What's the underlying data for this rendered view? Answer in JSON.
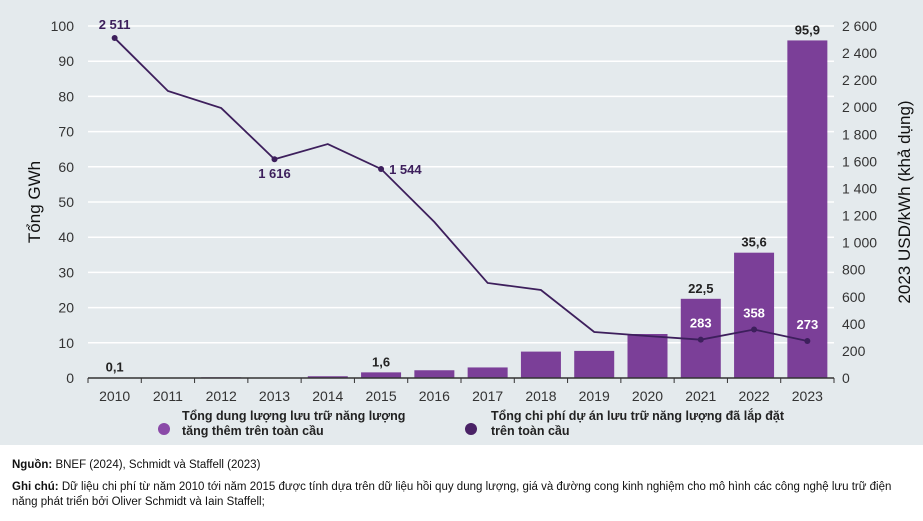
{
  "chart_data": {
    "type": "bar+line",
    "categories": [
      "2010",
      "2011",
      "2012",
      "2013",
      "2014",
      "2015",
      "2016",
      "2017",
      "2018",
      "2019",
      "2020",
      "2021",
      "2022",
      "2023"
    ],
    "series": [
      {
        "name": "Tổng dung lượng lưu trữ năng lượng tăng thêm trên toàn cầu",
        "type": "bar",
        "axis": "left",
        "color": "#7b3f98",
        "values": [
          0.1,
          0.05,
          0.2,
          0.1,
          0.5,
          1.6,
          2.2,
          3.0,
          7.5,
          7.7,
          12.5,
          22.5,
          35.6,
          95.9
        ]
      },
      {
        "name": "Tổng chi phí dự án lưu trữ năng lượng đã lắp đặt trên toàn cầu",
        "type": "line",
        "axis": "right",
        "color": "#3d1f5c",
        "values": [
          2511,
          2120,
          1994,
          1616,
          1728,
          1544,
          1152,
          702,
          650,
          340,
          310,
          283,
          358,
          273
        ]
      }
    ],
    "bar_labels": {
      "0": "0,1",
      "5": "1,6",
      "11": "22,5",
      "12": "35,6",
      "13": "95,9"
    },
    "line_labels": {
      "0": "2 511",
      "3": "1 616",
      "5": "1 544",
      "11": "283",
      "12": "358",
      "13": "273"
    },
    "ylabel": "Tổng GWh",
    "y2label": "2023 USD/kWh (khả dụng)",
    "ylim": [
      0,
      100
    ],
    "y2lim": [
      0,
      2600
    ],
    "yticks": [
      "0",
      "10",
      "20",
      "30",
      "40",
      "50",
      "60",
      "70",
      "80",
      "90",
      "100"
    ],
    "y2ticks": [
      "0",
      "200",
      "400",
      "600",
      "800",
      "1 000",
      "1 200",
      "1 400",
      "1 600",
      "1 800",
      "2 000",
      "2 200",
      "2 400",
      "2 600"
    ],
    "grid": true,
    "legend_position": "bottom"
  },
  "legend": {
    "bar": "Tổng dung lượng lưu trữ năng lượng tăng thêm trên toàn cầu",
    "line": "Tổng chi phí dự án lưu trữ năng lượng đã lắp đặt trên toàn cầu"
  },
  "source": {
    "label": "Nguồn:",
    "text": "BNEF (2024), Schmidt và Staffell (2023)"
  },
  "note": {
    "label": "Ghi chú:",
    "text": "Dữ liệu chi phí từ năm 2010 tới năm 2015 được tính dựa trên dữ liệu hồi quy dung lượng, giá và đường cong kinh nghiệm cho mô hình các công nghệ lưu trữ điện năng phát triển bởi Oliver Schmidt và Iain Staffell;"
  }
}
